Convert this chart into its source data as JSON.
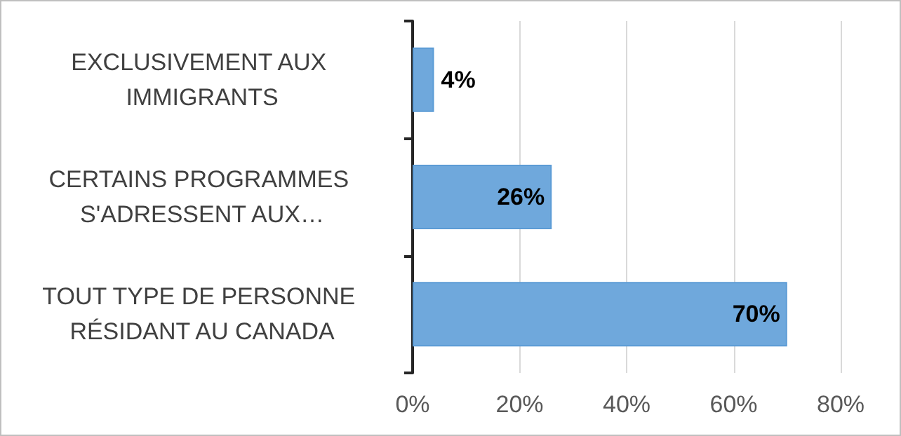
{
  "chart_data": {
    "type": "bar",
    "orientation": "horizontal",
    "categories": [
      "EXCLUSIVEMENT AUX IMMIGRANTS",
      "CERTAINS PROGRAMMES S'ADRESSENT AUX…",
      "TOUT TYPE DE PERSONNE RÉSIDANT AU CANADA"
    ],
    "values": [
      4,
      26,
      70
    ],
    "value_labels": [
      "4%",
      "26%",
      "70%"
    ],
    "color": "#6fa8dc",
    "xlim": [
      0,
      80
    ],
    "xticks": [
      {
        "value": 0,
        "label": "0%"
      },
      {
        "value": 20,
        "label": "20%"
      },
      {
        "value": 40,
        "label": "40%"
      },
      {
        "value": 60,
        "label": "60%"
      },
      {
        "value": 80,
        "label": "80%"
      }
    ],
    "grid": "x"
  }
}
